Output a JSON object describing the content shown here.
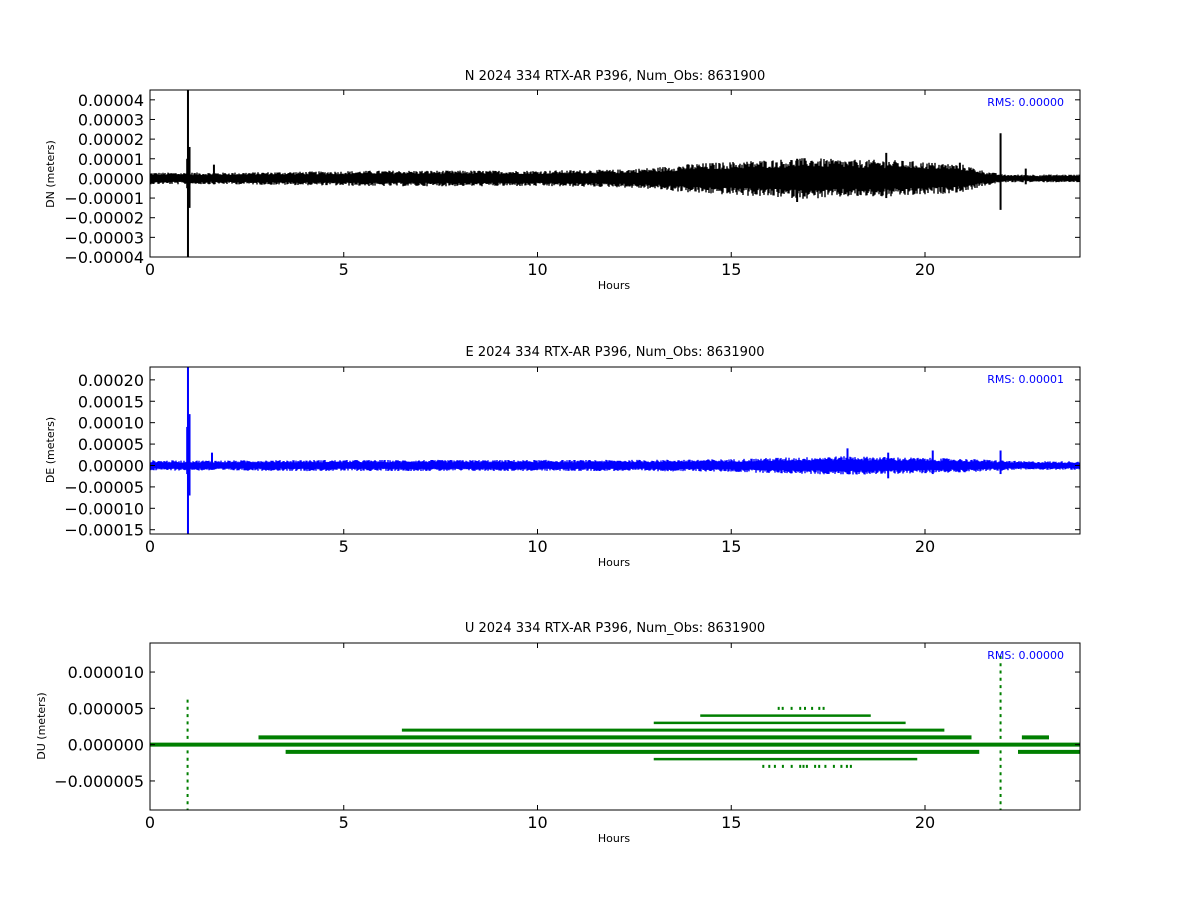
{
  "colors": {
    "N": "#000000",
    "E": "#0000ff",
    "U": "#007f00",
    "rms_text": "#0000ff"
  },
  "chart_data": [
    {
      "type": "line",
      "title": "N 2024 334 RTX-AR  P396, Num_Obs: 8631900",
      "xlabel": "Hours",
      "ylabel": "DN (meters)",
      "rms_label": "RMS:  0.00000",
      "xlim": [
        0,
        24
      ],
      "ylim": [
        -4e-05,
        4.5e-05
      ],
      "xticks": [
        0,
        5,
        10,
        15,
        20
      ],
      "xtick_labels": [
        "0",
        "5",
        "10",
        "15",
        "20"
      ],
      "yticks": [
        4e-05,
        3e-05,
        2e-05,
        1e-05,
        0.0,
        -1e-05,
        -2e-05,
        -3e-05,
        -4e-05
      ],
      "ytick_labels": [
        "0.00004",
        "0.00003",
        "0.00002",
        "0.00001",
        "0.00000",
        "−0.00001",
        "−0.00002",
        "−0.00003",
        "−0.00004"
      ],
      "grid": false,
      "series": [
        {
          "style": "dense-band",
          "envelope_hours": [
            0,
            1,
            2,
            4,
            6,
            8,
            10,
            12,
            13,
            14,
            15,
            16,
            17,
            18,
            19,
            20,
            21,
            21.5,
            22,
            22.5,
            24
          ],
          "envelope_amp": [
            3e-06,
            3e-06,
            3e-06,
            3.5e-06,
            4e-06,
            4e-06,
            4e-06,
            4.5e-06,
            5.5e-06,
            7.5e-06,
            8.5e-06,
            9.5e-06,
            1.05e-05,
            9.5e-06,
            9.5e-06,
            8.5e-06,
            7e-06,
            4e-06,
            2e-06,
            2e-06,
            2e-06
          ],
          "spikes": [
            {
              "x": 0.96,
              "low": -5e-06,
              "high": 1e-05
            },
            {
              "x": 0.98,
              "low": -4e-05,
              "high": 4.5e-05
            },
            {
              "x": 1.02,
              "low": -1.5e-05,
              "high": 1.6e-05
            },
            {
              "x": 1.65,
              "low": -3e-06,
              "high": 7e-06
            },
            {
              "x": 16.7,
              "low": -1.2e-05,
              "high": 1e-05
            },
            {
              "x": 19.0,
              "low": -1e-05,
              "high": 1.3e-05
            },
            {
              "x": 20.9,
              "low": -5e-06,
              "high": 8e-06
            },
            {
              "x": 21.95,
              "low": -1.6e-05,
              "high": 2.3e-05
            },
            {
              "x": 22.6,
              "low": -3e-06,
              "high": 5e-06
            }
          ]
        }
      ]
    },
    {
      "type": "line",
      "title": "E 2024 334 RTX-AR  P396, Num_Obs: 8631900",
      "xlabel": "Hours",
      "ylabel": "DE (meters)",
      "rms_label": "RMS:  0.00001",
      "xlim": [
        0,
        24
      ],
      "ylim": [
        -0.00016,
        0.00023
      ],
      "xticks": [
        0,
        5,
        10,
        15,
        20
      ],
      "xtick_labels": [
        "0",
        "5",
        "10",
        "15",
        "20"
      ],
      "yticks": [
        0.0002,
        0.00015,
        0.0001,
        5e-05,
        0.0,
        -5e-05,
        -0.0001,
        -0.00015
      ],
      "ytick_labels": [
        "0.00020",
        "0.00015",
        "0.00010",
        "0.00005",
        "0.00000",
        "−0.00005",
        "−0.00010",
        "−0.00015"
      ],
      "grid": false,
      "series": [
        {
          "style": "dense-band",
          "envelope_hours": [
            0,
            1,
            2,
            4,
            6,
            8,
            10,
            12,
            14,
            15,
            16,
            17,
            18,
            19,
            20,
            21,
            22,
            22.5,
            24
          ],
          "envelope_amp": [
            1.2e-05,
            1.2e-05,
            1.2e-05,
            1.3e-05,
            1.3e-05,
            1.3e-05,
            1.3e-05,
            1.3e-05,
            1.4e-05,
            1.5e-05,
            1.8e-05,
            2e-05,
            2.2e-05,
            2e-05,
            1.8e-05,
            1.6e-05,
            1.2e-05,
            1e-05,
            1e-05
          ],
          "spikes": [
            {
              "x": 0.96,
              "low": -2e-05,
              "high": 9e-05
            },
            {
              "x": 0.98,
              "low": -0.00016,
              "high": 0.00023
            },
            {
              "x": 1.02,
              "low": -7e-05,
              "high": 0.00012
            },
            {
              "x": 1.6,
              "low": -1e-05,
              "high": 3e-05
            },
            {
              "x": 18.0,
              "low": -2e-05,
              "high": 4e-05
            },
            {
              "x": 19.05,
              "low": -3e-05,
              "high": 3e-05
            },
            {
              "x": 20.2,
              "low": -2e-05,
              "high": 3.5e-05
            },
            {
              "x": 21.95,
              "low": -2e-05,
              "high": 3.5e-05
            }
          ]
        }
      ]
    },
    {
      "type": "scatter",
      "title": "U 2024 334 RTX-AR  P396, Num_Obs: 8631900",
      "xlabel": "Hours",
      "ylabel": "DU (meters)",
      "rms_label": "RMS:  0.00000",
      "xlim": [
        0,
        24
      ],
      "ylim": [
        -9e-06,
        1.4e-05
      ],
      "xticks": [
        0,
        5,
        10,
        15,
        20
      ],
      "xtick_labels": [
        "0",
        "5",
        "10",
        "15",
        "20"
      ],
      "yticks": [
        1e-05,
        5e-06,
        0.0,
        -5e-06
      ],
      "ytick_labels": [
        "0.000010",
        "0.000005",
        "0.000000",
        "−0.000005"
      ],
      "grid": false,
      "series": [
        {
          "style": "quantized-levels",
          "levels": [
            {
              "y": 0.0,
              "segments": [
                [
                  0,
                  24
                ]
              ],
              "weight": "heavy"
            },
            {
              "y": 1e-06,
              "segments": [
                [
                  2.8,
                  21.2
                ],
                [
                  22.5,
                  23.2
                ]
              ],
              "weight": "heavy"
            },
            {
              "y": -1e-06,
              "segments": [
                [
                  3.5,
                  21.4
                ],
                [
                  22.4,
                  24
                ]
              ],
              "weight": "heavy"
            },
            {
              "y": 2e-06,
              "segments": [
                [
                  6.5,
                  20.5
                ]
              ],
              "weight": "medium"
            },
            {
              "y": 3e-06,
              "segments": [
                [
                  13.0,
                  19.5
                ]
              ],
              "weight": "light"
            },
            {
              "y": -2e-06,
              "segments": [
                [
                  13.0,
                  19.8
                ]
              ],
              "weight": "light"
            },
            {
              "y": 4e-06,
              "segments": [
                [
                  14.2,
                  18.6
                ]
              ],
              "weight": "light"
            },
            {
              "y": -3e-06,
              "segments": [
                [
                  15.8,
                  18.2
                ]
              ],
              "weight": "sparse"
            },
            {
              "y": 5e-06,
              "segments": [
                [
                  16.2,
                  17.5
                ]
              ],
              "weight": "sparse"
            }
          ],
          "spikes": [
            {
              "x": 0.97,
              "low": -9e-06,
              "high": 6.5e-06
            },
            {
              "x": 21.95,
              "low": -9e-06,
              "high": 1.3e-05
            }
          ]
        }
      ]
    }
  ]
}
